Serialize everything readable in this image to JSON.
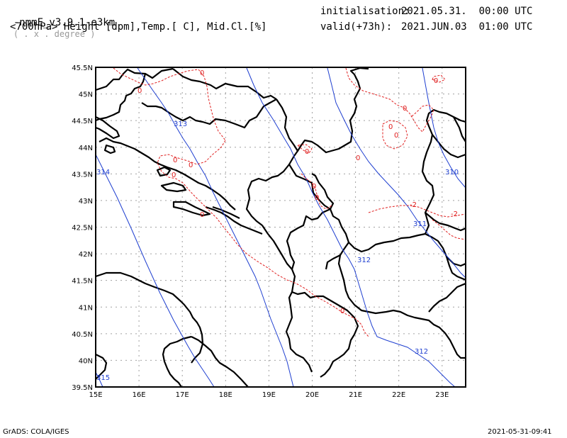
{
  "header": {
    "model": "-nmmE_v3.9.1-e3km",
    "grid": "( . x . degree )",
    "fields": "<700hPa> Height [dpm],Temp.[ C], Mid.Cl.[%]",
    "init_label": "initialisation:",
    "init_value": "2021.05.31.  00:00 UTC",
    "valid_label": "valid(+73h):",
    "valid_value": "2021.JUN.03  01:00 UTC"
  },
  "footer": {
    "left": "GrADS: COLA/IGES",
    "right": "2021-05-31-09:41"
  },
  "map": {
    "lon_ticks": [
      "15E",
      "16E",
      "17E",
      "18E",
      "19E",
      "20E",
      "21E",
      "22E",
      "23E"
    ],
    "lat_ticks": [
      "45.5N",
      "45N",
      "44.5N",
      "44N",
      "43.5N",
      "43N",
      "42.5N",
      "42N",
      "41.5N",
      "41N",
      "40.5N",
      "40N",
      "39.5N"
    ],
    "colors": {
      "height": "#1f3fd0",
      "temp": "#e02020",
      "border": "#000000",
      "grid": "#a0a0a0"
    },
    "height_labels": [
      "313",
      "314",
      "310",
      "311",
      "312",
      "312",
      "315"
    ],
    "temp_labels": [
      "0",
      "0",
      "0",
      "0",
      "0",
      "0",
      "0",
      "0",
      "0",
      "0",
      "0",
      "0",
      "0",
      "-2",
      "-2",
      "0",
      "0"
    ]
  }
}
